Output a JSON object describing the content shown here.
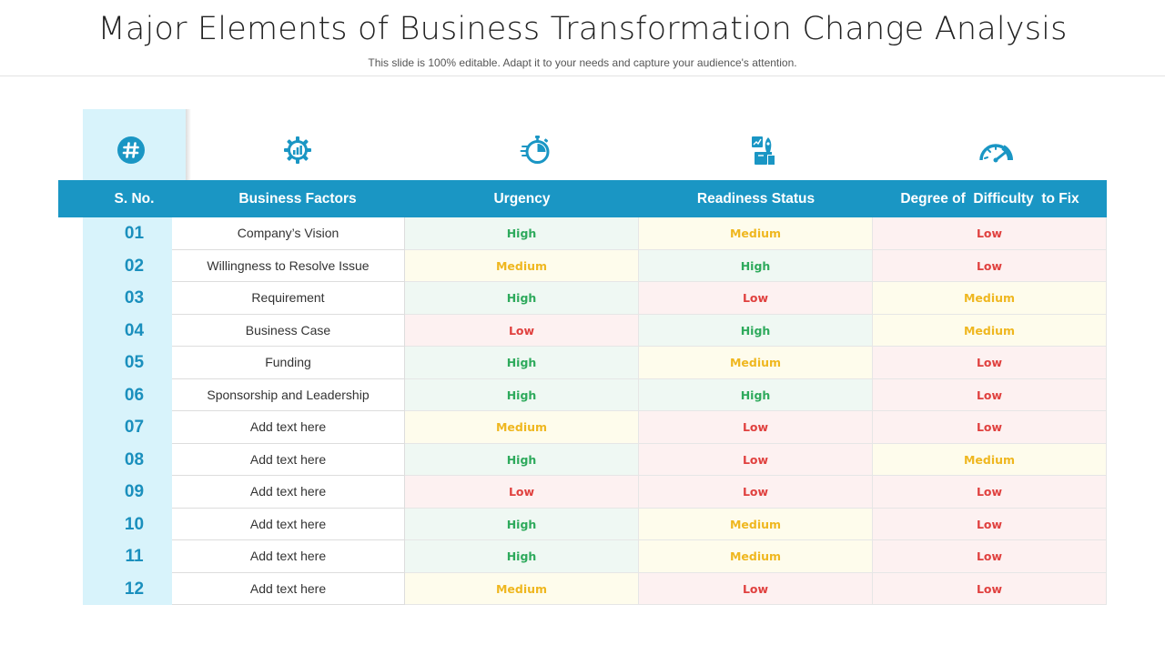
{
  "title": "Major Elements of Business Transformation Change Analysis",
  "subtitle": "This slide is 100% editable. Adapt it to your needs and capture your audience's attention.",
  "icons": [
    "hash-icon",
    "gear-chart-icon",
    "stopwatch-icon",
    "readiness-icon",
    "speedometer-icon"
  ],
  "colors": {
    "header": "#1a96c4",
    "sno_band": "#d8f3fb",
    "sno_text": "#1a8fbd",
    "high": "#2eaa5c",
    "medium": "#efb720",
    "low": "#e0413f"
  },
  "headers": {
    "sno": "S. No.",
    "factors": "Business Factors",
    "urgency": "Urgency",
    "readiness": "Readiness Status",
    "difficulty": "Degree of  Difficulty  to Fix"
  },
  "rows": [
    {
      "sno": "01",
      "factor": "Company’s Vision",
      "urgency": "High",
      "readiness": "Medium",
      "difficulty": "Low"
    },
    {
      "sno": "02",
      "factor": "Willingness to Resolve Issue",
      "urgency": "Medium",
      "readiness": "High",
      "difficulty": "Low"
    },
    {
      "sno": "03",
      "factor": "Requirement",
      "urgency": "High",
      "readiness": "Low",
      "difficulty": "Medium"
    },
    {
      "sno": "04",
      "factor": "Business Case",
      "urgency": "Low",
      "readiness": "High",
      "difficulty": "Medium"
    },
    {
      "sno": "05",
      "factor": "Funding",
      "urgency": "High",
      "readiness": "Medium",
      "difficulty": "Low"
    },
    {
      "sno": "06",
      "factor": "Sponsorship and Leadership",
      "urgency": "High",
      "readiness": "High",
      "difficulty": "Low"
    },
    {
      "sno": "07",
      "factor": "Add text here",
      "urgency": "Medium",
      "readiness": "Low",
      "difficulty": "Low"
    },
    {
      "sno": "08",
      "factor": "Add text here",
      "urgency": "High",
      "readiness": "Low",
      "difficulty": "Medium"
    },
    {
      "sno": "09",
      "factor": "Add text here",
      "urgency": "Low",
      "readiness": "Low",
      "difficulty": "Low"
    },
    {
      "sno": "10",
      "factor": "Add text here",
      "urgency": "High",
      "readiness": "Medium",
      "difficulty": "Low"
    },
    {
      "sno": "11",
      "factor": "Add text here",
      "urgency": "High",
      "readiness": "Medium",
      "difficulty": "Low"
    },
    {
      "sno": "12",
      "factor": "Add text here",
      "urgency": "Medium",
      "readiness": "Low",
      "difficulty": "Low"
    }
  ]
}
